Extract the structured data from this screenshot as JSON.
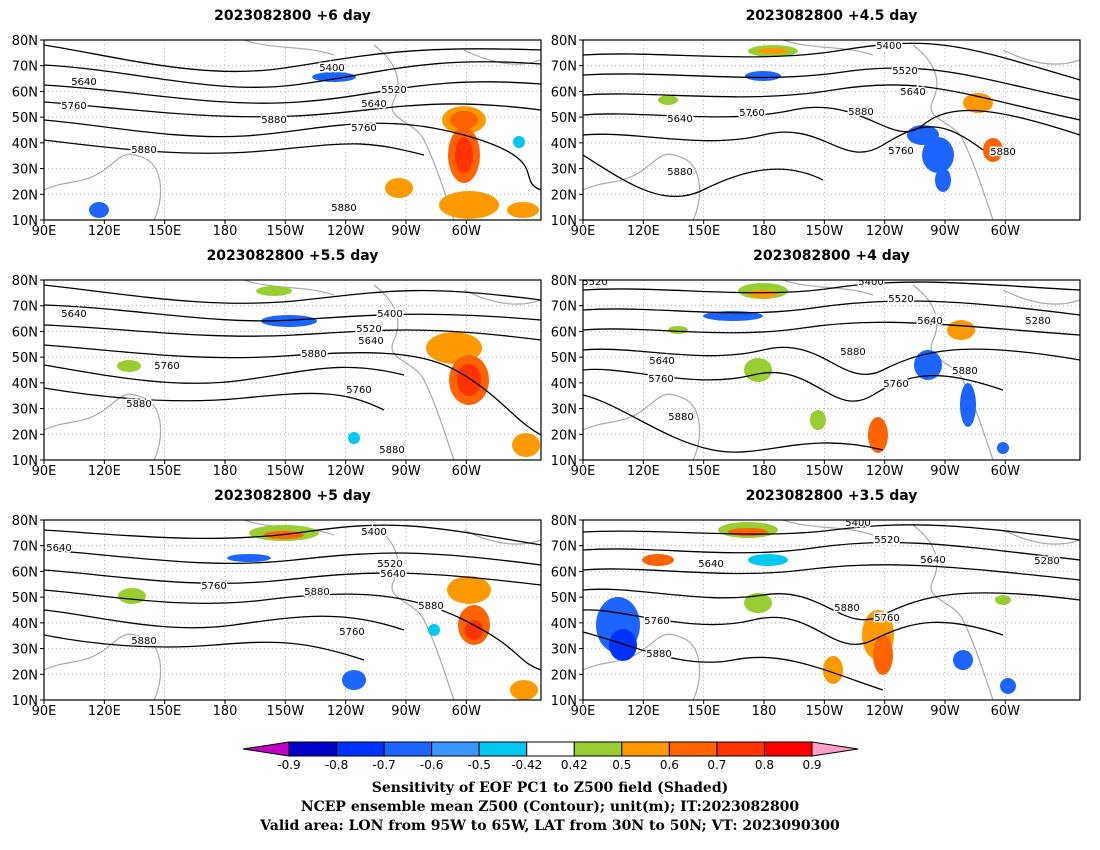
{
  "panels": [
    {
      "title": "2023082800  +6 day",
      "contour_labels": [
        "5400",
        "5520",
        "5640",
        "5640",
        "5760",
        "5760",
        "5880",
        "5880",
        "5880"
      ]
    },
    {
      "title": "2023082800  +4.5  day",
      "contour_labels": [
        "5400",
        "5520",
        "5640",
        "5640",
        "5760",
        "5880",
        "5760",
        "5880",
        "5880"
      ]
    },
    {
      "title": "2023082800  +5.5  day",
      "contour_labels": [
        "5640",
        "5400",
        "5520",
        "5640",
        "5760",
        "5880",
        "5880",
        "5760",
        "5880"
      ]
    },
    {
      "title": "2023082800  +4  day",
      "contour_labels": [
        "5520",
        "5400",
        "5520",
        "5640",
        "5280",
        "5640",
        "5880",
        "5760",
        "5760",
        "5880",
        "5880"
      ]
    },
    {
      "title": "2023082800  +5  day",
      "contour_labels": [
        "5640",
        "5400",
        "5520",
        "5640",
        "5760",
        "5880",
        "5880",
        "5880",
        "5760"
      ]
    },
    {
      "title": "2023082800  +3.5  day",
      "contour_labels": [
        "5400",
        "5520",
        "5640",
        "5640",
        "5280",
        "5760",
        "5880",
        "5760",
        "5880",
        "58"
      ]
    }
  ],
  "lat_labels": [
    "80N",
    "70N",
    "60N",
    "50N",
    "40N",
    "30N",
    "20N",
    "10N"
  ],
  "lon_labels": [
    "90E",
    "120E",
    "150E",
    "180",
    "150W",
    "120W",
    "90W",
    "60W"
  ],
  "colorbar": {
    "ticks": [
      "-0.9",
      "-0.8",
      "-0.7",
      "-0.6",
      "-0.5",
      "-0.42",
      "0.42",
      "0.5",
      "0.6",
      "0.7",
      "0.8",
      "0.9"
    ],
    "colors": [
      "#c000c0",
      "#0000c8",
      "#0032ff",
      "#1e64ff",
      "#3c96ff",
      "#00c8f0",
      "#ffffff",
      "#9acd32",
      "#ff9900",
      "#ff6400",
      "#ff3200",
      "#ff0000",
      "#ffa0c8"
    ]
  },
  "captions": [
    "Sensitivity of EOF PC1 to Z500 field (Shaded)",
    "NCEP ensemble mean Z500 (Contour); unit(m); IT:2023082800",
    "Valid area: LON from 95W to 65W, LAT from 30N to 50N; VT: 2023090300"
  ]
}
